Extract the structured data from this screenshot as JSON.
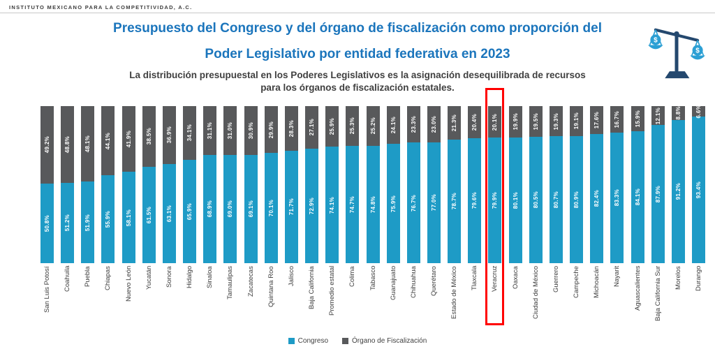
{
  "header": {
    "org": "INSTITUTO MEXICANO PARA LA COMPETITIVIDAD, A.C."
  },
  "title": {
    "line1": "Presupuesto del Congreso y del órgano de fiscalización como proporción del",
    "line2": "Poder Legislativo por entidad federativa en 2023"
  },
  "subtitle": {
    "line1": "La distribución presupuestal en los Poderes Legislativos es la asignación desequilibrada de recursos",
    "line2": "para los órganos de fiscalización estatales."
  },
  "icons": {
    "scale": "balance-scale-with-dollar-coins-icon",
    "dollar": "$"
  },
  "colors": {
    "title_blue": "#1B75BC",
    "congreso_blue": "#1E9BC6",
    "fiscalizacion_gray": "#58595B",
    "highlight_red": "#FF0000",
    "text_dark": "#404040"
  },
  "highlight": {
    "category": "Veracruz",
    "color": "#FF0000"
  },
  "legend": {
    "position": "bottom",
    "items": [
      "Congreso",
      "Órgano de Fiscalización"
    ]
  },
  "chart_data": {
    "type": "bar",
    "stacked": true,
    "orientation": "vertical",
    "value_suffix": "%",
    "ylim": [
      0,
      100
    ],
    "grid": false,
    "legend_position": "bottom",
    "title": "Presupuesto del Congreso y del órgano de fiscalización como proporción del Poder Legislativo por entidad federativa en 2023",
    "categories": [
      "San Luis Potosí",
      "Coahuila",
      "Puebla",
      "Chiapas",
      "Nuevo León",
      "Yucatán",
      "Sonora",
      "Hidalgo",
      "Sinaloa",
      "Tamaulipas",
      "Zacatecas",
      "Quintana Roo",
      "Jalisco",
      "Baja California",
      "Promedio estatal",
      "Colima",
      "Tabasco",
      "Guanajuato",
      "Chihuahua",
      "Querétaro",
      "Estado de México",
      "Tlaxcala",
      "Veracruz",
      "Oaxaca",
      "Ciudad de México",
      "Guerrero",
      "Campeche",
      "Michoacán",
      "Nayarit",
      "Aguascalientes",
      "Baja California Sur",
      "Morelos",
      "Durango"
    ],
    "series": [
      {
        "name": "Congreso",
        "key": "congreso",
        "color": "#1E9BC6",
        "values": [
          50.8,
          51.2,
          51.9,
          55.9,
          58.1,
          61.5,
          63.1,
          65.9,
          68.9,
          69.0,
          69.1,
          70.1,
          71.7,
          72.9,
          74.1,
          74.7,
          74.8,
          75.9,
          76.7,
          77.0,
          78.7,
          79.6,
          79.9,
          80.1,
          80.5,
          80.7,
          80.9,
          82.4,
          83.3,
          84.1,
          87.9,
          91.2,
          93.4
        ]
      },
      {
        "name": "Órgano de Fiscalización",
        "key": "fiscalizacion",
        "color": "#58595B",
        "values": [
          49.2,
          48.8,
          48.1,
          44.1,
          41.9,
          38.5,
          36.9,
          34.1,
          31.1,
          31.0,
          30.9,
          29.9,
          28.3,
          27.1,
          25.9,
          25.3,
          25.2,
          24.1,
          23.3,
          23.0,
          21.3,
          20.4,
          20.1,
          19.9,
          19.5,
          19.3,
          19.1,
          17.6,
          16.7,
          15.9,
          12.1,
          8.8,
          6.6
        ]
      }
    ]
  }
}
